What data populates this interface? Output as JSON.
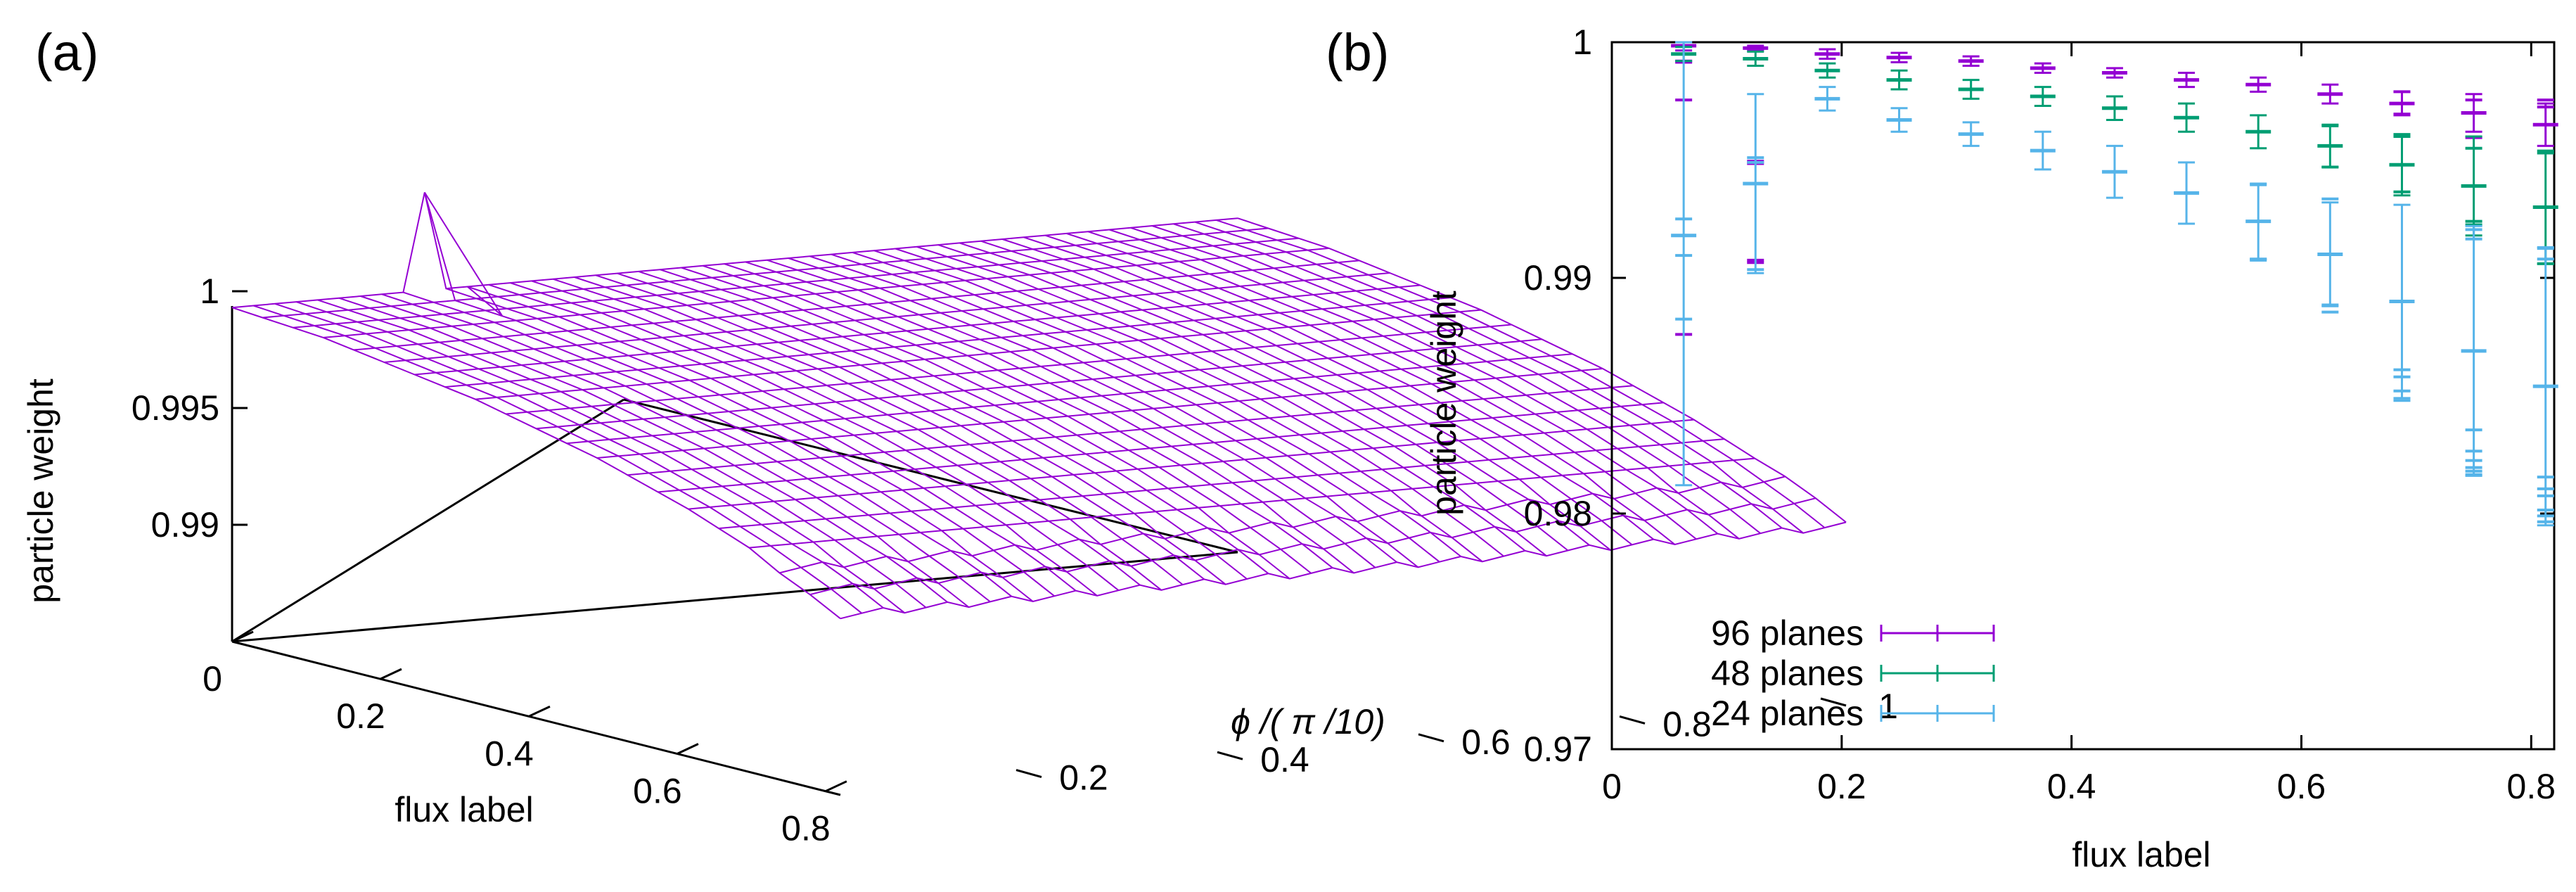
{
  "chart_data": [
    {
      "panel": "(a)",
      "type": "surface3d",
      "xlabel": "flux label",
      "ylabel": "ϕ /( π /10)",
      "zlabel": "particle weight",
      "x_ticks": [
        "0",
        "0.2",
        "0.4",
        "0.6",
        "0.8"
      ],
      "y_ticks": [
        "0.2",
        "0.4",
        "0.6",
        "0.8",
        "1"
      ],
      "z_ticks": [
        "1",
        "0.995",
        "0.99"
      ],
      "xlim": [
        0,
        0.82
      ],
      "ylim": [
        0,
        1
      ],
      "zlim": [
        0.985,
        1.0
      ],
      "surface_color": "#9400d3",
      "axes_color": "#000000",
      "grid": {
        "x_values": [
          0,
          0.041,
          0.082,
          0.123,
          0.164,
          0.205,
          0.246,
          0.287,
          0.328,
          0.369,
          0.41,
          0.451,
          0.492,
          0.533,
          0.574,
          0.615,
          0.656,
          0.697,
          0.738,
          0.779,
          0.82
        ],
        "y_count": 48,
        "z_profile": [
          0.9993,
          0.9992,
          0.9991,
          0.999,
          0.9988,
          0.9986,
          0.9984,
          0.9982,
          0.998,
          0.9977,
          0.9974,
          0.9971,
          0.9968,
          0.9964,
          0.996,
          0.9956,
          0.9951,
          0.9946,
          0.994,
          0.9934,
          0.9927
        ],
        "spike": {
          "x": 0.0,
          "y_index": 9,
          "z": 1.0035
        }
      }
    },
    {
      "panel": "(b)",
      "type": "errorbar",
      "xlabel": "flux label",
      "ylabel": "particle weight",
      "xlim": [
        0,
        0.82
      ],
      "ylim": [
        0.97,
        1.0
      ],
      "x_ticks": [
        0,
        0.2,
        0.4,
        0.6,
        0.8
      ],
      "x_tick_labels": [
        "0",
        "0.2",
        "0.4",
        "0.6",
        "0.8"
      ],
      "y_ticks": [
        0.97,
        0.98,
        0.99,
        1.0
      ],
      "y_tick_labels": [
        "0.97",
        "0.98",
        "0.99",
        "1"
      ],
      "legend_position": "bottom-left",
      "x": [
        0.0625,
        0.125,
        0.1875,
        0.25,
        0.3125,
        0.375,
        0.4375,
        0.5,
        0.5625,
        0.625,
        0.6875,
        0.75,
        0.8125
      ],
      "series": [
        {
          "name": "96 planes",
          "color": "#9400d3",
          "values": [
            0.99985,
            0.99975,
            0.9995,
            0.99935,
            0.9992,
            0.9989,
            0.9987,
            0.9984,
            0.9982,
            0.9978,
            0.9974,
            0.997,
            0.9965
          ],
          "errors": [
            0.0002,
            0.0001,
            0.0002,
            0.0002,
            0.0002,
            0.0002,
            0.0002,
            0.0003,
            0.0003,
            0.0004,
            0.0005,
            0.0008,
            0.0009
          ],
          "extra_ticks": [
            [
              0.9992,
              0.99915,
              0.9876,
              0.99755
            ],
            [
              0.99495,
              0.99485,
              0.99075,
              0.99065
            ],
            [],
            [],
            [],
            [],
            [],
            [],
            [],
            [],
            [
              0.9979,
              0.99695
            ],
            [
              0.99755,
              0.99595
            ],
            [
              0.99755,
              0.99725
            ]
          ]
        },
        {
          "name": "48 planes",
          "color": "#009e73",
          "values": [
            0.9995,
            0.9993,
            0.9988,
            0.9984,
            0.998,
            0.9977,
            0.9972,
            0.9968,
            0.9962,
            0.9956,
            0.9948,
            0.9939,
            0.993
          ],
          "errors": [
            0.0003,
            0.0003,
            0.0003,
            0.0004,
            0.0004,
            0.0004,
            0.0005,
            0.0006,
            0.0007,
            0.0009,
            0.0013,
            0.0021,
            0.0024
          ],
          "extra_ticks": [
            [],
            [],
            [],
            [],
            [],
            [],
            [],
            [],
            [],
            [
              0.99645,
              0.9947
            ],
            [
              0.996,
              0.99365
            ],
            [
              0.9955,
              0.9924,
              0.99225
            ],
            [
              0.9953,
              0.9906
            ]
          ]
        },
        {
          "name": "24 planes",
          "color": "#56b4e9",
          "values": [
            0.9918,
            0.994,
            0.9976,
            0.9967,
            0.9961,
            0.9954,
            0.9945,
            0.9936,
            0.9924,
            0.991,
            0.989,
            0.9869,
            0.9854
          ],
          "errors": [
            0.0106,
            0.0038,
            0.0005,
            0.0005,
            0.0005,
            0.0008,
            0.0011,
            0.0013,
            0.0016,
            0.0022,
            0.0041,
            0.0053,
            0.0059
          ],
          "extra_ticks": [
            [
              0.9925,
              0.99095,
              0.98825
            ],
            [
              0.9951,
              0.9949,
              0.99035
            ],
            [],
            [],
            [],
            [],
            [],
            [],
            [
              0.99395,
              0.9908,
              0.99075
            ],
            [
              0.99335,
              0.98855,
              0.98885
            ],
            [
              0.9861,
              0.9858,
              0.9852,
              0.9848
            ],
            [
              0.99205,
              0.99165,
              0.98355,
              0.98265,
              0.98225,
              0.9818,
              0.98165,
              0.98195
            ],
            [
              0.99125,
              0.9908,
              0.98155,
              0.98105,
              0.98075,
              0.98015,
              0.9799,
              0.97965
            ]
          ]
        }
      ]
    }
  ]
}
